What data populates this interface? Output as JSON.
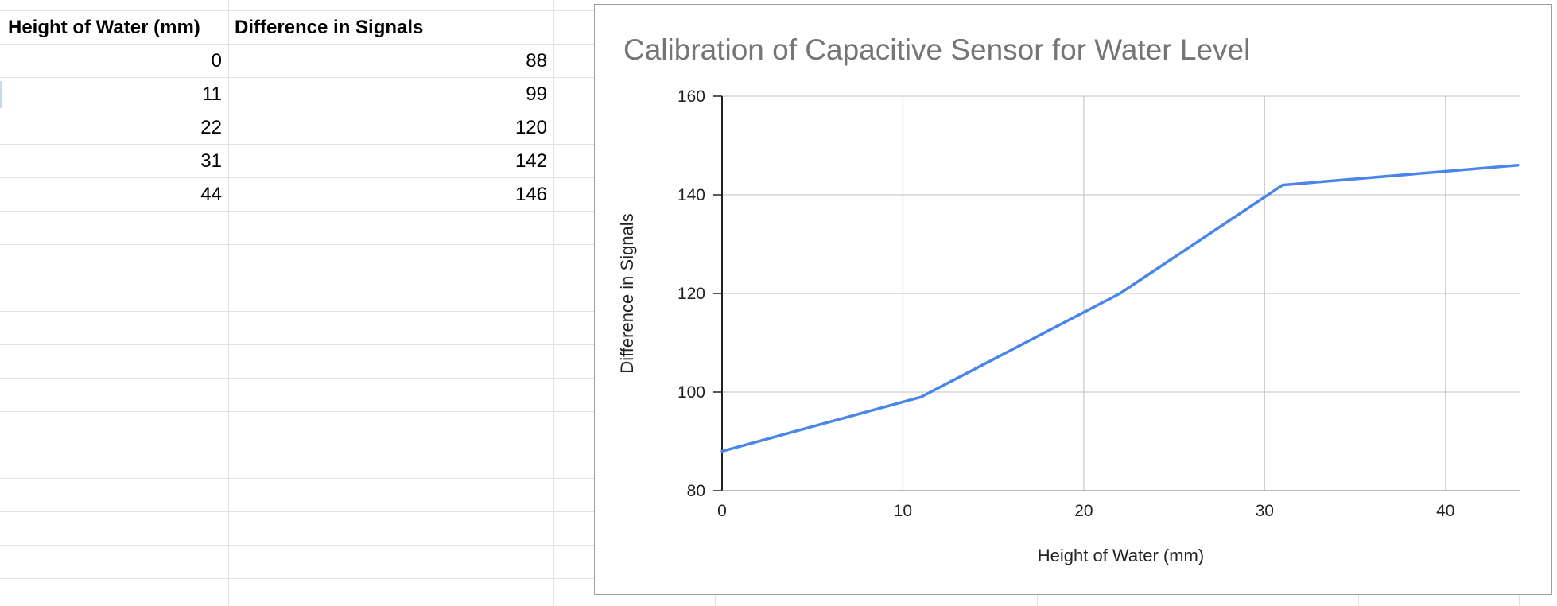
{
  "sheet": {
    "headers": [
      "Height of Water (mm)",
      "Difference in Signals"
    ],
    "rows": [
      [
        "0",
        "88"
      ],
      [
        "11",
        "99"
      ],
      [
        "22",
        "120"
      ],
      [
        "31",
        "142"
      ],
      [
        "44",
        "146"
      ]
    ]
  },
  "chart_data": {
    "type": "line",
    "title": "Calibration of Capacitive Sensor for Water Level",
    "xlabel": "Height of Water (mm)",
    "ylabel": "Difference in Signals",
    "x": [
      0,
      11,
      22,
      31,
      44
    ],
    "series": [
      {
        "values": [
          88,
          99,
          120,
          142,
          146
        ]
      }
    ],
    "xlim": [
      0,
      44
    ],
    "ylim": [
      80,
      160
    ],
    "xticks": [
      "0",
      "10",
      "20",
      "30",
      "40"
    ],
    "yticks": [
      "80",
      "100",
      "120",
      "140",
      "160"
    ],
    "grid": true,
    "legend": "none",
    "line_color": "#4a86e8"
  }
}
